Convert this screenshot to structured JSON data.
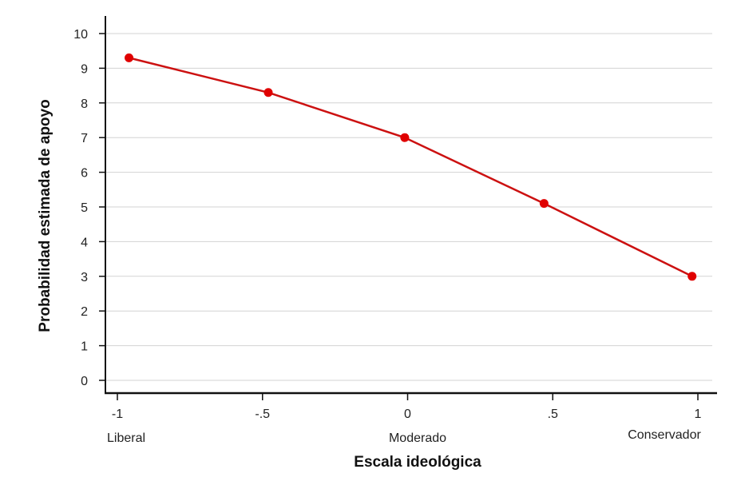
{
  "chart_data": {
    "type": "line",
    "title": "",
    "xlabel": "Escala ideológica",
    "ylabel": "Probabilidad estimada de apoyo",
    "xlim": [
      -1.05,
      1.06
    ],
    "ylim": [
      -0.4,
      10.5
    ],
    "x_ticks": [
      -1,
      -0.5,
      0,
      0.5,
      1
    ],
    "x_tick_labels": [
      "-1",
      "-.5",
      "0",
      ".5",
      "1"
    ],
    "x_category_labels": [
      {
        "x": -1,
        "label": "Liberal"
      },
      {
        "x": 0,
        "label": "Moderado"
      },
      {
        "x": 1,
        "label": "Conservador"
      }
    ],
    "y_ticks": [
      0,
      1,
      2,
      3,
      4,
      5,
      6,
      7,
      8,
      9,
      10
    ],
    "y_tick_labels": [
      "0",
      "1",
      "2",
      "3",
      "4",
      "5",
      "6",
      "7",
      "8",
      "9",
      "10"
    ],
    "grid": "horizontal",
    "series": [
      {
        "name": "Probabilidad estimada",
        "color": "#e00000",
        "line_color": "#cc1111",
        "x": [
          -0.96,
          -0.48,
          -0.01,
          0.47,
          0.98
        ],
        "values": [
          9.3,
          8.3,
          7.0,
          5.1,
          3.0
        ]
      }
    ]
  }
}
